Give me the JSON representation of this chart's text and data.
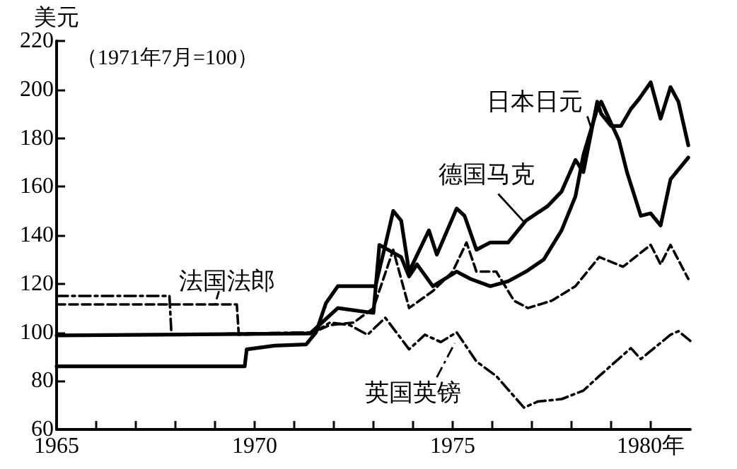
{
  "chart_data": {
    "type": "line",
    "ylabel": "美元",
    "annotations": [
      "（1971年7月=100）"
    ],
    "xlim": [
      1965,
      1981
    ],
    "xticks": [
      {
        "value": 1965,
        "label": "1965"
      },
      {
        "value": 1966,
        "label": null
      },
      {
        "value": 1967,
        "label": null
      },
      {
        "value": 1968,
        "label": null
      },
      {
        "value": 1969,
        "label": null
      },
      {
        "value": 1970,
        "label": "1970"
      },
      {
        "value": 1971,
        "label": null
      },
      {
        "value": 1972,
        "label": null
      },
      {
        "value": 1973,
        "label": null
      },
      {
        "value": 1974,
        "label": null
      },
      {
        "value": 1975,
        "label": "1975"
      },
      {
        "value": 1976,
        "label": null
      },
      {
        "value": 1977,
        "label": null
      },
      {
        "value": 1978,
        "label": null
      },
      {
        "value": 1979,
        "label": null
      },
      {
        "value": 1980,
        "label": "1980年"
      }
    ],
    "ylim": [
      60,
      220
    ],
    "yticks": [
      60,
      80,
      100,
      120,
      140,
      160,
      180,
      200,
      220
    ],
    "grid": false,
    "marker": "none",
    "series": [
      {
        "name": "日本日元",
        "color": "#000000",
        "line_style": "solid",
        "x": [
          1965,
          1971.4,
          1971.7,
          1972.1,
          1973.0,
          1973.15,
          1973.7,
          1973.9,
          1974.1,
          1974.5,
          1975.1,
          1975.45,
          1975.95,
          1976.4,
          1976.85,
          1977.3,
          1977.75,
          1978.1,
          1978.3,
          1978.65,
          1978.75,
          1979.2,
          1979.4,
          1979.75,
          1980.0,
          1980.25,
          1980.5,
          1980.7,
          1980.95
        ],
        "values": [
          98.7,
          99.5,
          104,
          110,
          108,
          136,
          131,
          123,
          128,
          119,
          125,
          122,
          119,
          121,
          125,
          130,
          142,
          156,
          173,
          192,
          195,
          179,
          166,
          148,
          149,
          144,
          163,
          167,
          172
        ]
      },
      {
        "name": "德国马克",
        "color": "#000000",
        "line_style": "solid",
        "x": [
          1965,
          1969.75,
          1969.8,
          1970.5,
          1971.3,
          1971.55,
          1971.8,
          1972.1,
          1973.05,
          1973.3,
          1973.5,
          1973.7,
          1973.9,
          1974.4,
          1974.6,
          1975.1,
          1975.3,
          1975.6,
          1975.95,
          1976.4,
          1976.85,
          1977.4,
          1977.75,
          1978.1,
          1978.3,
          1978.65,
          1978.75,
          1979.0,
          1979.25,
          1979.5,
          1979.7,
          1980.0,
          1980.25,
          1980.5,
          1980.7,
          1980.95
        ],
        "values": [
          86,
          86,
          93,
          94.5,
          95,
          100,
          112,
          119,
          119,
          136,
          150,
          146,
          125,
          142,
          132,
          151,
          148,
          134,
          137,
          137,
          146,
          152,
          158,
          171,
          166,
          195,
          190,
          185,
          185,
          192,
          196,
          203,
          188,
          201,
          195,
          177
        ]
      },
      {
        "name": "法国法郎",
        "color": "#000000",
        "line_style": "dashed",
        "x": [
          1965,
          1969.55,
          1969.6,
          1971.5,
          1971.9,
          1972.5,
          1973.0,
          1973.5,
          1973.9,
          1974.5,
          1975.0,
          1975.35,
          1975.6,
          1976.1,
          1976.55,
          1976.9,
          1977.5,
          1978.1,
          1978.7,
          1979.3,
          1980.0,
          1980.25,
          1980.5,
          1980.95
        ],
        "values": [
          111.5,
          111.5,
          99,
          100,
          103,
          104,
          110,
          134,
          110,
          117,
          125,
          137,
          125,
          125,
          113,
          110,
          113,
          119,
          131,
          127,
          136,
          128,
          136,
          122
        ]
      },
      {
        "name": "英国英镑",
        "color": "#000000",
        "line_style": "dashdot",
        "x": [
          1965,
          1967.85,
          1967.9,
          1971.5,
          1971.9,
          1972.4,
          1972.85,
          1973.3,
          1973.9,
          1974.3,
          1974.7,
          1975.1,
          1975.6,
          1976.1,
          1976.8,
          1977.15,
          1977.75,
          1978.3,
          1978.7,
          1979.5,
          1979.75,
          1980.5,
          1980.7,
          1981.0
        ],
        "values": [
          115,
          115,
          99,
          100,
          104,
          103,
          99,
          106,
          93,
          99,
          96,
          100,
          88,
          82,
          69,
          71.5,
          72.5,
          76,
          82,
          93.5,
          89,
          99,
          100.5,
          96.5
        ]
      }
    ]
  }
}
